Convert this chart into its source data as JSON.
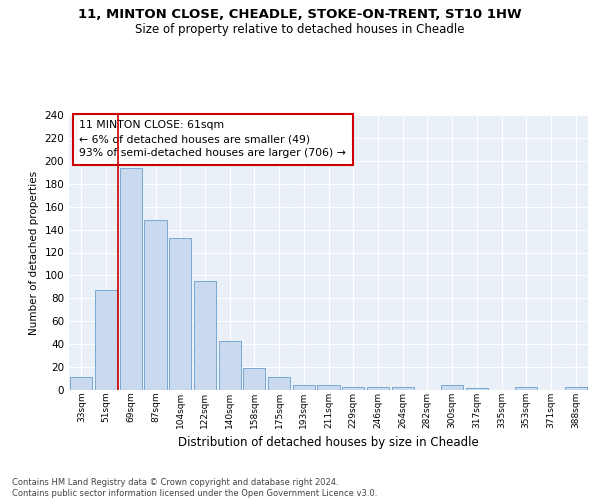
{
  "title1": "11, MINTON CLOSE, CHEADLE, STOKE-ON-TRENT, ST10 1HW",
  "title2": "Size of property relative to detached houses in Cheadle",
  "xlabel": "Distribution of detached houses by size in Cheadle",
  "ylabel": "Number of detached properties",
  "bar_labels": [
    "33sqm",
    "51sqm",
    "69sqm",
    "87sqm",
    "104sqm",
    "122sqm",
    "140sqm",
    "158sqm",
    "175sqm",
    "193sqm",
    "211sqm",
    "229sqm",
    "246sqm",
    "264sqm",
    "282sqm",
    "300sqm",
    "317sqm",
    "335sqm",
    "353sqm",
    "371sqm",
    "388sqm"
  ],
  "bar_values": [
    11,
    87,
    194,
    148,
    133,
    95,
    43,
    19,
    11,
    4,
    4,
    3,
    3,
    3,
    0,
    4,
    2,
    0,
    3,
    0,
    3
  ],
  "bar_color": "#c9d9ee",
  "bar_edge_color": "#7aA8d0",
  "vline_x": 1.5,
  "vline_color": "#cc0000",
  "annotation_text": "11 MINTON CLOSE: 61sqm\n← 6% of detached houses are smaller (49)\n93% of semi-detached houses are larger (706) →",
  "annotation_box_color": "#ffffff",
  "annotation_box_edge": "#cc0000",
  "footer_text": "Contains HM Land Registry data © Crown copyright and database right 2024.\nContains public sector information licensed under the Open Government Licence v3.0.",
  "ylim": [
    0,
    240
  ],
  "yticks": [
    0,
    20,
    40,
    60,
    80,
    100,
    120,
    140,
    160,
    180,
    200,
    220,
    240
  ],
  "bg_color": "#eaf0f8",
  "fig_bg_color": "#ffffff"
}
